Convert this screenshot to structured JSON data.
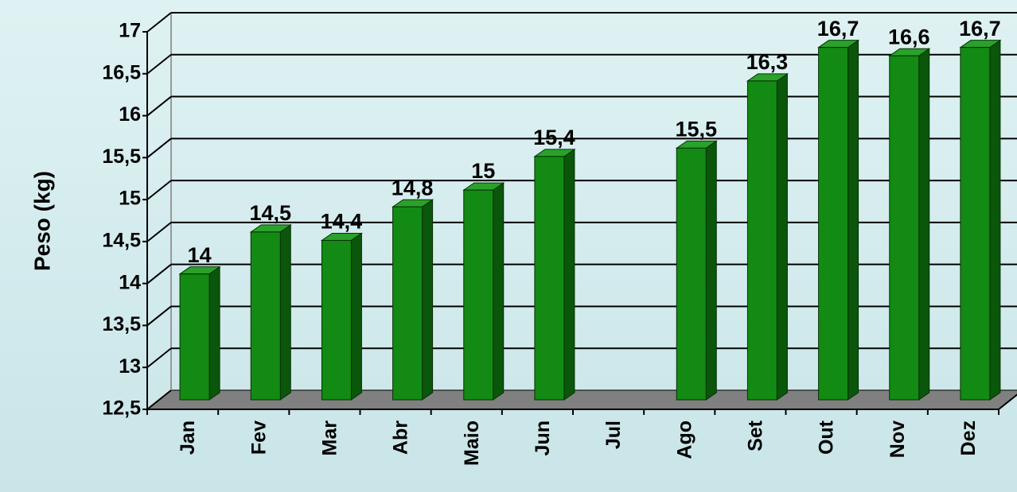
{
  "chart_data": {
    "type": "bar3d",
    "y_label": "Peso (kg)",
    "categories": [
      "Jan",
      "Fev",
      "Mar",
      "Abr",
      "Maio",
      "Jun",
      "Jul",
      "Ago",
      "Set",
      "Out",
      "Nov",
      "Dez"
    ],
    "values": [
      14,
      14.5,
      14.4,
      14.8,
      15,
      15.4,
      null,
      15.5,
      16.3,
      16.7,
      16.6,
      16.7
    ],
    "value_labels": [
      "14",
      "14,5",
      "14,4",
      "14,8",
      "15",
      "15,4",
      null,
      "15,5",
      "16,3",
      "16,7",
      "16,6",
      "16,7"
    ],
    "color": "#138a13",
    "ylim": [
      12.5,
      17
    ],
    "yticks": [
      {
        "value": 12.5,
        "label": "12,5"
      },
      13,
      {
        "value": 13.5,
        "label": "13,5"
      },
      14,
      {
        "value": 14.5,
        "label": "14,5"
      },
      15,
      {
        "value": 15.5,
        "label": "15,5"
      },
      16,
      {
        "value": 16.5,
        "label": "16,5"
      },
      17
    ],
    "grid": true
  }
}
